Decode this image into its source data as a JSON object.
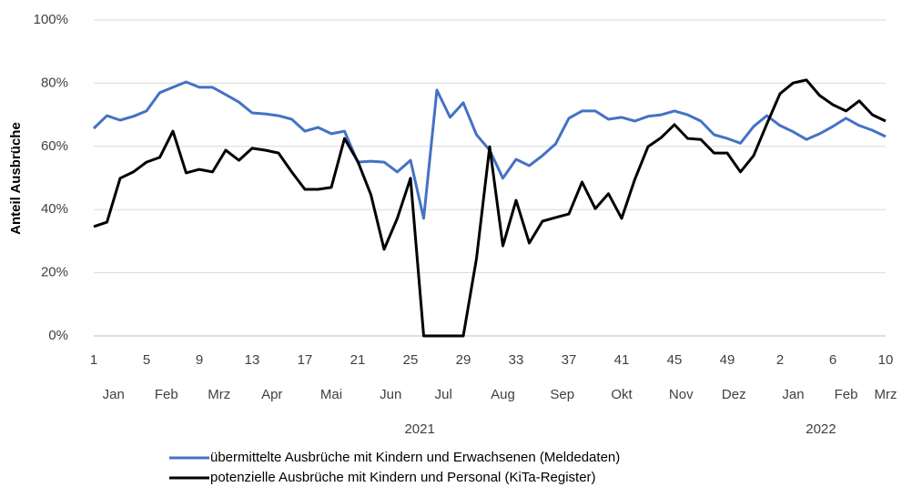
{
  "chart_data": {
    "type": "line",
    "y_label": "Anteil Ausbrüche",
    "categories": [
      "1",
      null,
      null,
      null,
      "5",
      null,
      null,
      null,
      "9",
      null,
      null,
      null,
      "13",
      null,
      null,
      null,
      "17",
      null,
      null,
      null,
      "21",
      null,
      null,
      null,
      "25",
      null,
      null,
      null,
      "29",
      null,
      null,
      null,
      "33",
      null,
      null,
      null,
      "37",
      null,
      null,
      null,
      "41",
      null,
      null,
      null,
      "45",
      null,
      null,
      null,
      "49",
      null,
      null,
      null,
      "2",
      null,
      null,
      null,
      "6",
      null,
      null,
      null,
      "10"
    ],
    "months": [
      "Jan",
      "Feb",
      "Mrz",
      "Apr",
      "Mai",
      "Jun",
      "Jul",
      "Aug",
      "Sep",
      "Okt",
      "Nov",
      "Dez",
      "Jan",
      "Feb",
      "Mrz"
    ],
    "years": [
      "2021",
      "2022"
    ],
    "series": [
      {
        "name": "übermittelte Ausbrüche mit Kindern und Erwachsenen (Meldedaten)",
        "color": "#4472c4",
        "values": [
          65.7,
          69.7,
          68.3,
          69.5,
          71.2,
          77,
          78.7,
          80.4,
          78.7,
          78.7,
          76.4,
          74,
          70.6,
          70.3,
          69.7,
          68.6,
          64.8,
          66,
          64,
          64.8,
          55,
          55.3,
          55,
          51.9,
          55.6,
          37.2,
          77.8,
          69.2,
          73.8,
          63.7,
          58.8,
          49.9,
          55.9,
          53.9,
          57.1,
          60.8,
          68.9,
          71.2,
          71.2,
          68.6,
          69.2,
          68,
          69.5,
          70,
          71.2,
          70,
          68,
          63.7,
          62.5,
          61,
          66.3,
          69.7,
          66.6,
          64.6,
          62.2,
          64,
          66.3,
          68.9,
          66.6,
          65.1,
          63.1
        ]
      },
      {
        "name": "potenzielle Ausbrüche mit Kindern und Personal (KiTa-Register)",
        "color": "#000000",
        "values": [
          34.6,
          36,
          49.9,
          51.9,
          55,
          56.5,
          64.8,
          51.6,
          52.7,
          51.9,
          58.8,
          55.6,
          59.4,
          58.8,
          57.9,
          51.9,
          46.4,
          46.4,
          47,
          62.5,
          55.3,
          44.7,
          27.4,
          37.2,
          49.9,
          0,
          0,
          0,
          0,
          24.5,
          59.9,
          28.5,
          42.9,
          29.4,
          36.3,
          37.5,
          38.6,
          48.7,
          40.3,
          45,
          37.2,
          49.6,
          59.9,
          62.8,
          66.9,
          62.5,
          62.2,
          57.9,
          57.9,
          51.9,
          57.1,
          67.1,
          76.7,
          80.1,
          81,
          76.1,
          73.2,
          71.2,
          74.4,
          70,
          68
        ]
      }
    ],
    "ylim": [
      0,
      100
    ],
    "yticks": [
      {
        "value": 0,
        "label": "0%"
      },
      {
        "value": 20,
        "label": "20%"
      },
      {
        "value": 40,
        "label": "40%"
      },
      {
        "value": 60,
        "label": "60%"
      },
      {
        "value": 80,
        "label": "80%"
      },
      {
        "value": 100,
        "label": "100%"
      }
    ],
    "grid": true,
    "legend": "bottom"
  }
}
